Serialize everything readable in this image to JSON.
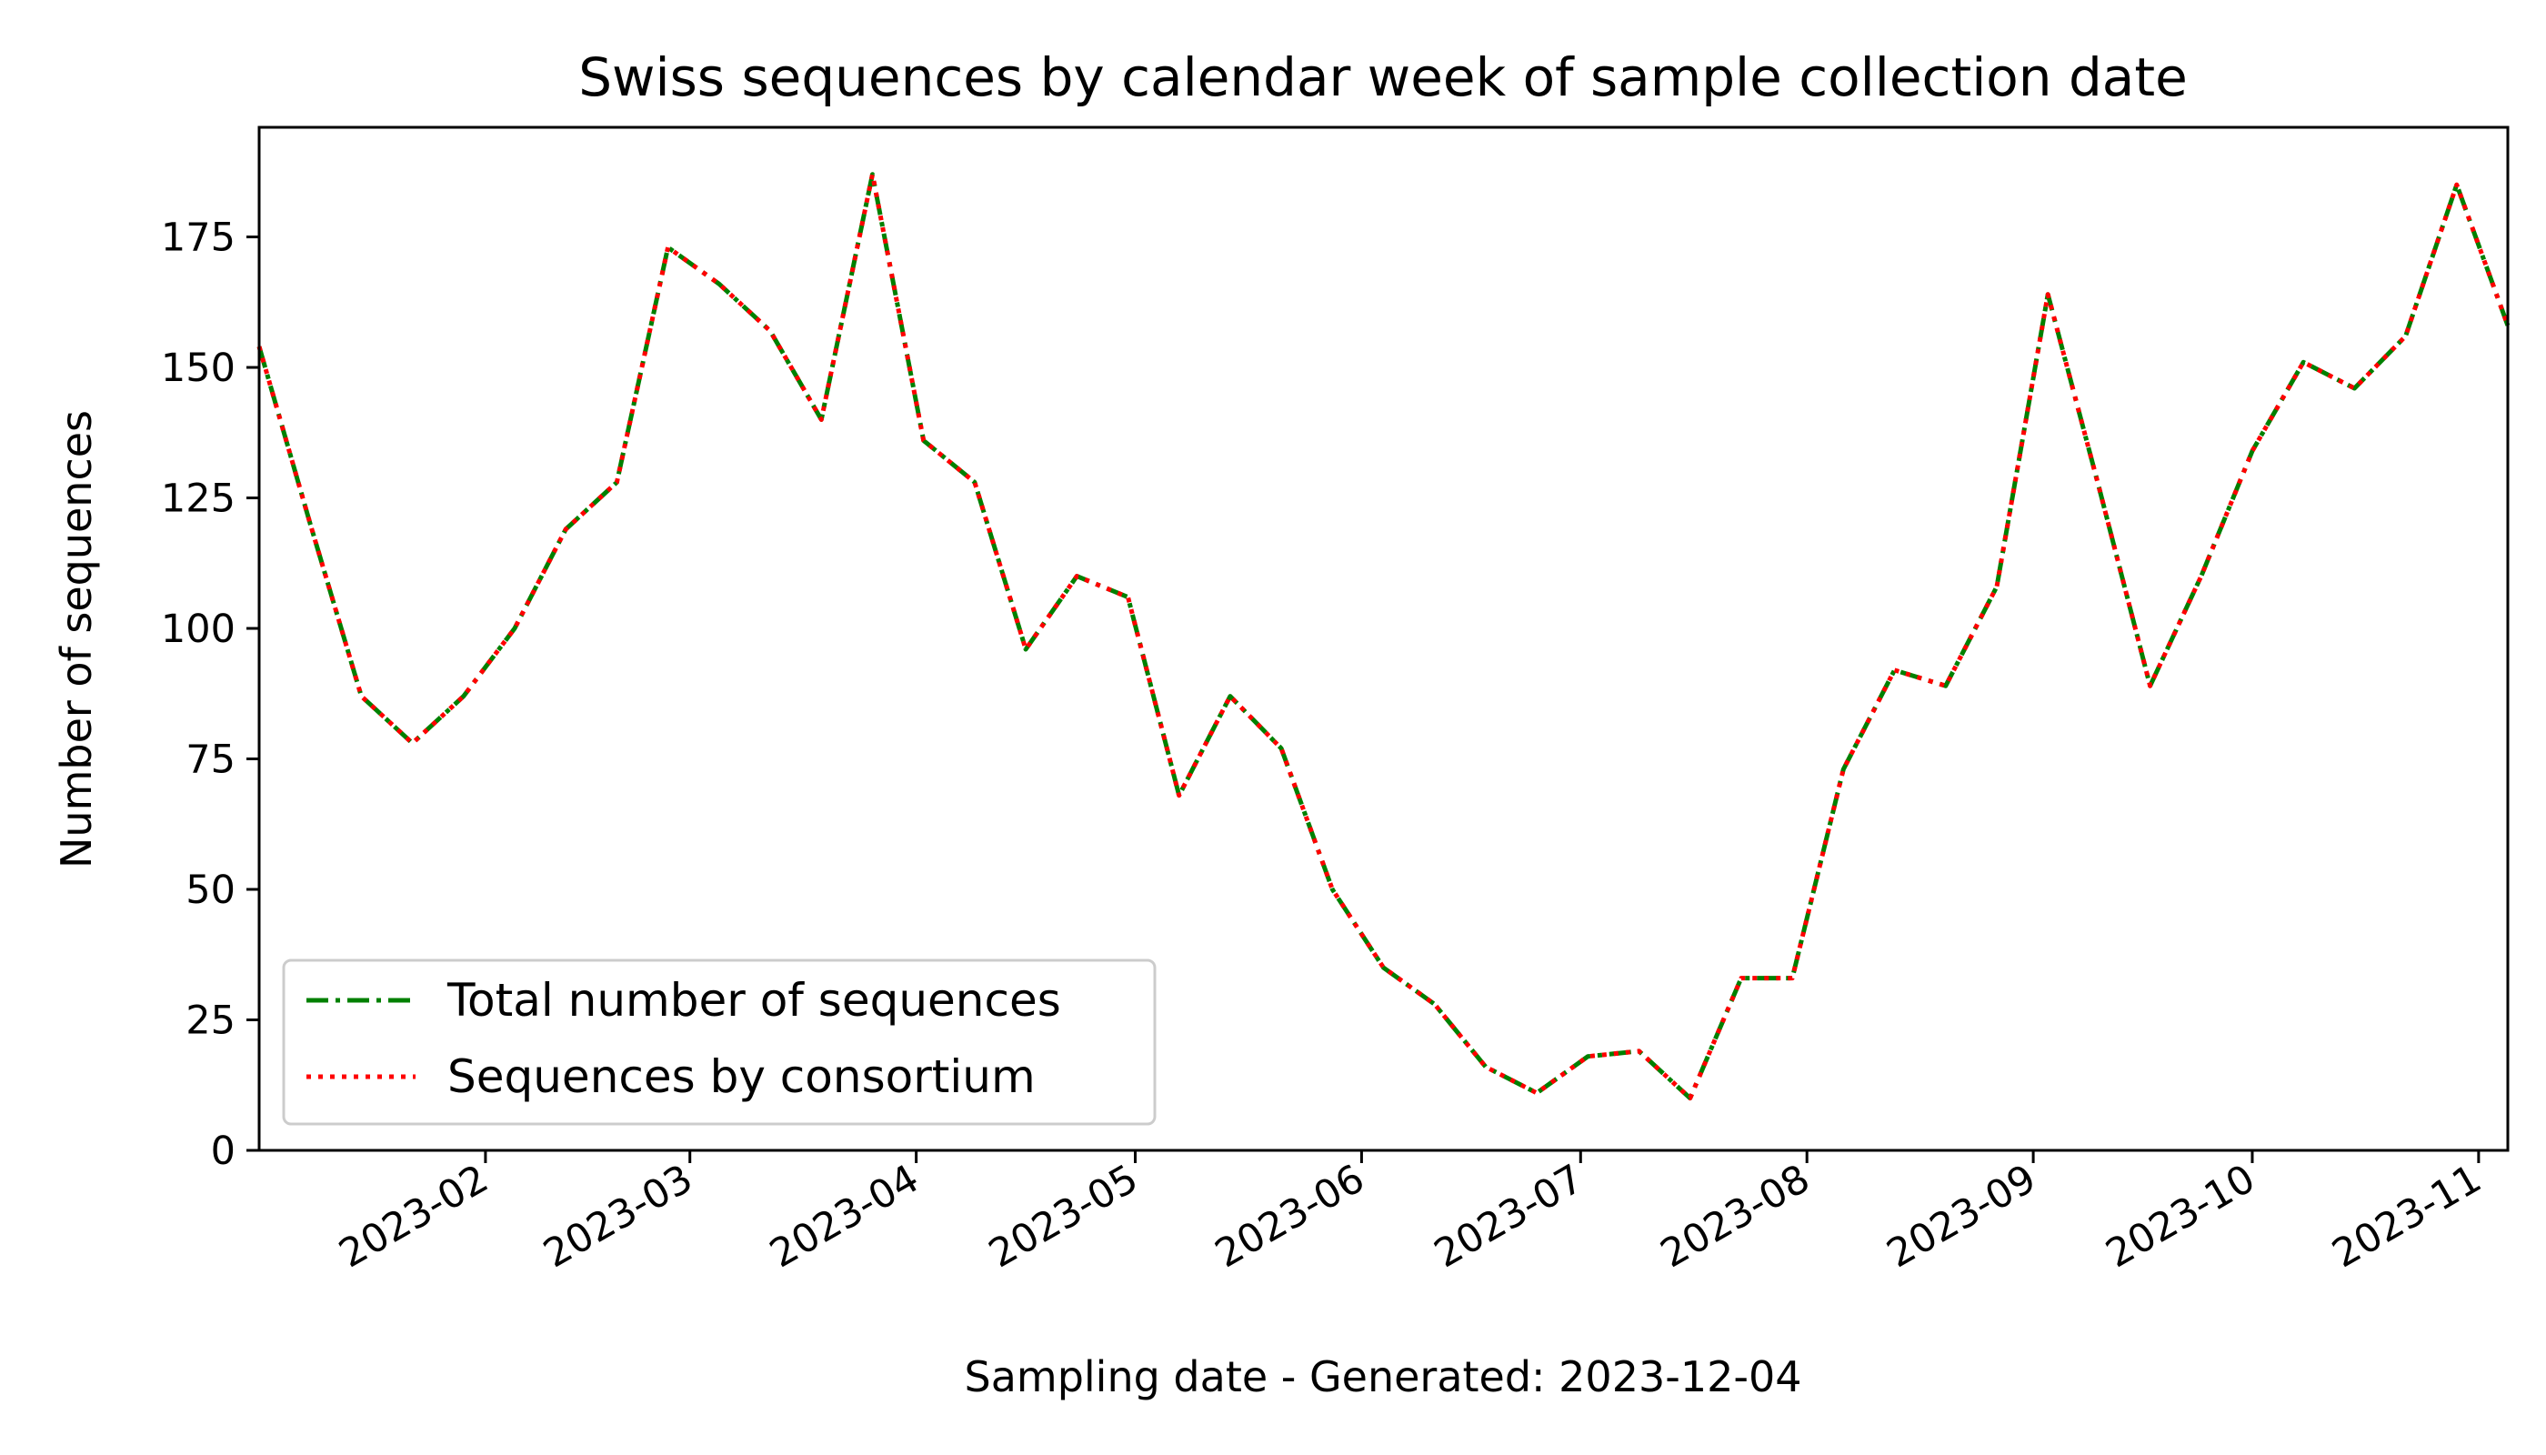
{
  "chart_data": {
    "type": "line",
    "title": "Swiss sequences by calendar week of sample collection date",
    "xlabel": "Sampling date - Generated: 2023-12-04",
    "ylabel": "Number of sequences",
    "xlim": [
      "2023-01-01",
      "2023-11-05"
    ],
    "ylim": [
      0,
      196
    ],
    "y_ticks": [
      0,
      25,
      50,
      75,
      100,
      125,
      150,
      175
    ],
    "x_ticks": [
      "2023-02",
      "2023-03",
      "2023-04",
      "2023-05",
      "2023-06",
      "2023-07",
      "2023-08",
      "2023-09",
      "2023-10",
      "2023-11"
    ],
    "x_tick_dates": [
      "2023-02-01",
      "2023-03-01",
      "2023-04-01",
      "2023-05-01",
      "2023-06-01",
      "2023-07-01",
      "2023-08-01",
      "2023-09-01",
      "2023-10-01",
      "2023-11-01"
    ],
    "grid": false,
    "legend_position": "lower-left",
    "x": [
      "2023-01-01",
      "2023-01-08",
      "2023-01-15",
      "2023-01-22",
      "2023-01-29",
      "2023-02-05",
      "2023-02-12",
      "2023-02-19",
      "2023-02-26",
      "2023-03-05",
      "2023-03-12",
      "2023-03-19",
      "2023-03-26",
      "2023-04-02",
      "2023-04-09",
      "2023-04-16",
      "2023-04-23",
      "2023-04-30",
      "2023-05-07",
      "2023-05-14",
      "2023-05-21",
      "2023-05-28",
      "2023-06-04",
      "2023-06-11",
      "2023-06-18",
      "2023-06-25",
      "2023-07-02",
      "2023-07-09",
      "2023-07-16",
      "2023-07-23",
      "2023-07-30",
      "2023-08-06",
      "2023-08-13",
      "2023-08-20",
      "2023-08-27",
      "2023-09-03",
      "2023-09-10",
      "2023-09-17",
      "2023-09-24",
      "2023-10-01",
      "2023-10-08",
      "2023-10-15",
      "2023-10-22",
      "2023-10-29",
      "2023-11-05"
    ],
    "series": [
      {
        "name": "Total number of sequences",
        "color": "#008000",
        "line_style": "dashdot",
        "values": [
          154,
          120,
          87,
          78,
          87,
          100,
          119,
          128,
          173,
          166,
          157,
          140,
          187,
          136,
          128,
          96,
          110,
          106,
          68,
          87,
          77,
          50,
          35,
          28,
          16,
          11,
          18,
          19,
          10,
          33,
          33,
          73,
          92,
          89,
          108,
          164,
          127,
          89,
          110,
          134,
          151,
          146,
          156,
          185,
          158
        ]
      },
      {
        "name": "Sequences by consortium",
        "color": "#ff0000",
        "line_style": "dotted",
        "values": [
          154,
          120,
          87,
          78,
          87,
          100,
          119,
          128,
          173,
          166,
          157,
          140,
          187,
          136,
          128,
          96,
          110,
          106,
          68,
          87,
          77,
          50,
          35,
          28,
          16,
          11,
          18,
          19,
          10,
          33,
          33,
          73,
          92,
          89,
          108,
          164,
          127,
          89,
          110,
          134,
          151,
          146,
          156,
          185,
          158
        ]
      }
    ]
  }
}
